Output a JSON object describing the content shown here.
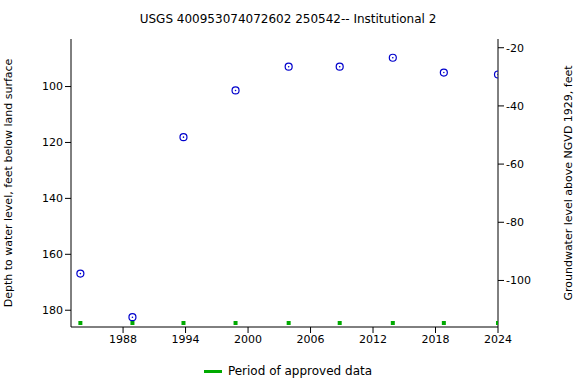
{
  "chart_data": {
    "type": "scatter",
    "title": "USGS 400953074072602 250542-- Institutional 2",
    "x_label": "",
    "y_label": "Depth to water level, feet below land surface",
    "y2_label": "Groundwater level above NGVD 1929, feet",
    "xlim": [
      1983,
      2024
    ],
    "xticks": [
      1988,
      1994,
      2000,
      2006,
      2012,
      2018,
      2024
    ],
    "ylim": [
      186,
      83
    ],
    "yticks": [
      100,
      120,
      140,
      160,
      180
    ],
    "y2lim": [
      -116,
      -17
    ],
    "y2ticks": [
      -20,
      -40,
      -60,
      -80,
      -100
    ],
    "grid": false,
    "series": [
      {
        "name": "Depth to water level",
        "color": "#0000cc",
        "marker": "circle",
        "x": [
          1983.9,
          1988.9,
          1993.8,
          1998.8,
          2003.9,
          2008.8,
          2013.9,
          2018.8,
          2024.0
        ],
        "values": [
          166.9,
          182.5,
          118.1,
          101.4,
          92.9,
          92.9,
          89.7,
          95.0,
          95.7
        ]
      },
      {
        "name": "Period of approved data",
        "color": "#00aa00",
        "marker": "square",
        "x": [
          1983.9,
          1988.9,
          1993.8,
          1998.8,
          2003.9,
          2008.8,
          2013.9,
          2018.8,
          2024.0
        ]
      }
    ]
  }
}
